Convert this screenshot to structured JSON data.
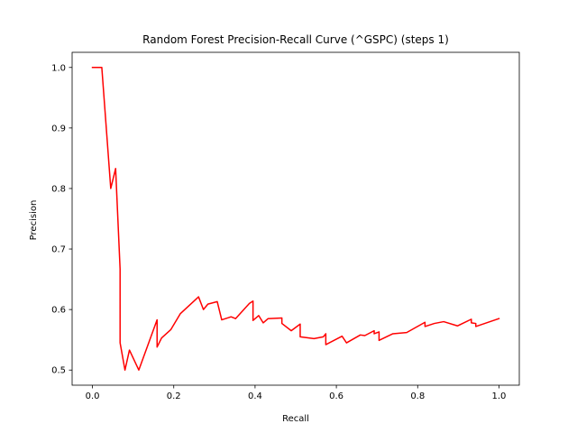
{
  "chart_data": {
    "type": "line",
    "title": "Random Forest Precision-Recall Curve (^GSPC) (steps 1)",
    "xlabel": "Recall",
    "ylabel": "Precision",
    "xlim": [
      -0.05,
      1.05
    ],
    "ylim": [
      0.475,
      1.025
    ],
    "xticks": [
      "0.0",
      "0.2",
      "0.4",
      "0.6",
      "0.8",
      "1.0"
    ],
    "yticks": [
      "0.5",
      "0.6",
      "0.7",
      "0.8",
      "0.9",
      "1.0"
    ],
    "grid": false,
    "series": [
      {
        "color": "#ff0000",
        "points": [
          [
            0.0,
            1.0
          ],
          [
            0.023,
            1.0
          ],
          [
            0.045,
            0.8
          ],
          [
            0.057,
            0.833
          ],
          [
            0.068,
            0.667
          ],
          [
            0.068,
            0.545
          ],
          [
            0.08,
            0.5
          ],
          [
            0.091,
            0.533
          ],
          [
            0.114,
            0.5
          ],
          [
            0.159,
            0.583
          ],
          [
            0.159,
            0.538
          ],
          [
            0.17,
            0.553
          ],
          [
            0.193,
            0.567
          ],
          [
            0.216,
            0.593
          ],
          [
            0.261,
            0.621
          ],
          [
            0.273,
            0.6
          ],
          [
            0.284,
            0.609
          ],
          [
            0.307,
            0.613
          ],
          [
            0.318,
            0.583
          ],
          [
            0.341,
            0.588
          ],
          [
            0.352,
            0.585
          ],
          [
            0.386,
            0.61
          ],
          [
            0.395,
            0.614
          ],
          [
            0.395,
            0.582
          ],
          [
            0.409,
            0.59
          ],
          [
            0.42,
            0.578
          ],
          [
            0.432,
            0.585
          ],
          [
            0.466,
            0.586
          ],
          [
            0.466,
            0.577
          ],
          [
            0.489,
            0.565
          ],
          [
            0.511,
            0.576
          ],
          [
            0.511,
            0.555
          ],
          [
            0.545,
            0.552
          ],
          [
            0.568,
            0.555
          ],
          [
            0.574,
            0.56
          ],
          [
            0.574,
            0.542
          ],
          [
            0.614,
            0.556
          ],
          [
            0.625,
            0.545
          ],
          [
            0.659,
            0.558
          ],
          [
            0.67,
            0.557
          ],
          [
            0.693,
            0.565
          ],
          [
            0.693,
            0.56
          ],
          [
            0.705,
            0.563
          ],
          [
            0.705,
            0.549
          ],
          [
            0.739,
            0.56
          ],
          [
            0.773,
            0.562
          ],
          [
            0.818,
            0.579
          ],
          [
            0.818,
            0.572
          ],
          [
            0.841,
            0.577
          ],
          [
            0.864,
            0.58
          ],
          [
            0.898,
            0.573
          ],
          [
            0.932,
            0.584
          ],
          [
            0.932,
            0.578
          ],
          [
            0.943,
            0.577
          ],
          [
            0.943,
            0.572
          ],
          [
            1.0,
            0.585
          ]
        ]
      }
    ]
  }
}
